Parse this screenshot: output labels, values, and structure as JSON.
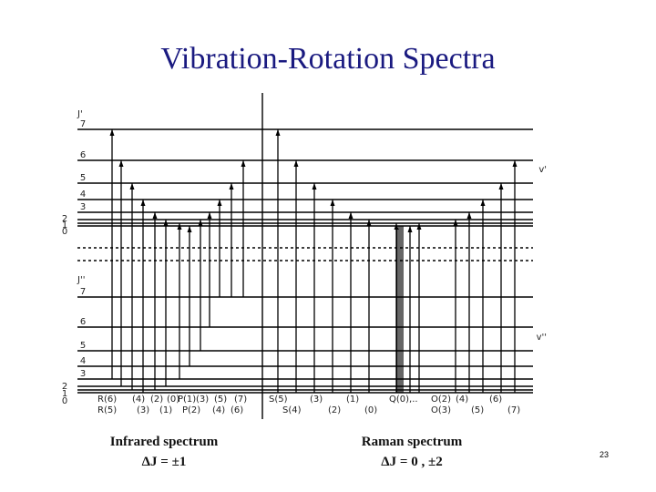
{
  "slide": {
    "title": "Vibration-Rotation Spectra",
    "page_number": "23"
  },
  "diagram": {
    "upper_state_label": "J'",
    "lower_state_label": "J''",
    "upper_vib_label": "v'",
    "lower_vib_label": "v''",
    "upper_levels": [
      "7",
      "6",
      "5",
      "4",
      "3",
      "2",
      "1",
      "0"
    ],
    "lower_levels": [
      "7",
      "6",
      "5",
      "4",
      "3",
      "2",
      "1",
      "0"
    ],
    "ir_labels_top": [
      "R(6)",
      "(4)",
      "(2)",
      "(0)",
      "P(1)",
      "(3)",
      "(5)",
      "(7)"
    ],
    "ir_labels_bottom": [
      "R(5)",
      "(3)",
      "(1)",
      "P(2)",
      "(4)",
      "(6)"
    ],
    "raman_labels_top": [
      "S(5)",
      "(3)",
      "(1)",
      "Q(0),..",
      "O(2)",
      "(4)",
      "(6)"
    ],
    "raman_labels_bottom": [
      "S(4)",
      "(2)",
      "(0)",
      "O(3)",
      "(5)",
      "(7)"
    ]
  },
  "captions": {
    "ir_title": "Infrared spectrum",
    "ir_rule": "ΔJ = ±1",
    "raman_title": "Raman spectrum",
    "raman_rule": "ΔJ = 0 , ±2"
  }
}
